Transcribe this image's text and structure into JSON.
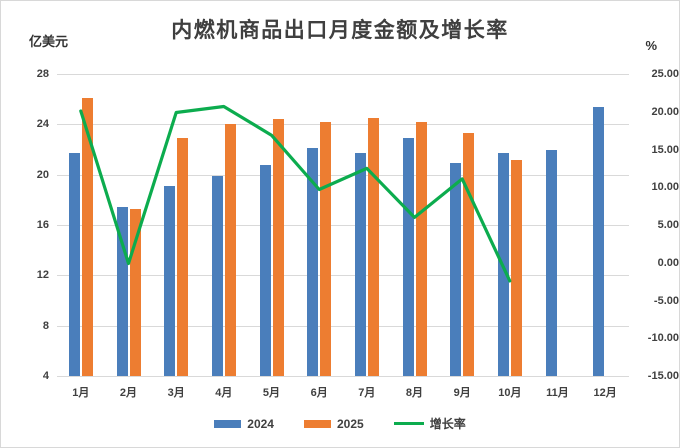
{
  "title": "内燃机商品出口月度金额及增长率",
  "left_axis": {
    "label": "亿美元",
    "ticks": [
      "28",
      "24",
      "20",
      "16",
      "12",
      "8",
      "4"
    ]
  },
  "right_axis": {
    "label": "%",
    "ticks": [
      "25.00",
      "20.00",
      "15.00",
      "10.00",
      "5.00",
      "0.00",
      "-5.00",
      "-10.00",
      "-15.00"
    ]
  },
  "legend": {
    "items": [
      {
        "label": "2024",
        "color": "#4a7ebb",
        "type": "bar"
      },
      {
        "label": "2025",
        "color": "#ed7d31",
        "type": "bar"
      },
      {
        "label": "增长率",
        "color": "#0cac4e",
        "type": "line"
      }
    ]
  },
  "colors": {
    "bar_2024": "#4a7ebb",
    "bar_2025": "#ed7d31",
    "growth_line": "#0cac4e",
    "gridline": "#d9d9d9",
    "title_text": "#3f3f3f"
  },
  "chart_data": {
    "type": "bar",
    "subtype": "grouped-bars-with-line",
    "title": "内燃机商品出口月度金额及增长率",
    "categories": [
      "1月",
      "2月",
      "3月",
      "4月",
      "5月",
      "6月",
      "7月",
      "8月",
      "9月",
      "10月",
      "11月",
      "12月"
    ],
    "series": [
      {
        "name": "2024",
        "type": "bar",
        "axis": "left",
        "color": "#4a7ebb",
        "values": [
          21.7,
          17.4,
          19.1,
          19.9,
          20.8,
          22.1,
          21.7,
          22.9,
          20.9,
          21.7,
          22.0,
          25.4
        ]
      },
      {
        "name": "2025",
        "type": "bar",
        "axis": "left",
        "color": "#ed7d31",
        "values": [
          26.1,
          17.3,
          22.9,
          24.0,
          24.4,
          24.2,
          24.5,
          24.2,
          23.3,
          21.2,
          null,
          null
        ]
      },
      {
        "name": "增长率",
        "type": "line",
        "axis": "right",
        "color": "#0cac4e",
        "values": [
          20.1,
          -0.1,
          19.9,
          20.7,
          16.9,
          9.7,
          12.5,
          6.0,
          11.1,
          -2.4,
          null,
          null
        ]
      }
    ],
    "left_ylabel": "亿美元",
    "right_ylabel": "%",
    "left_ylim": [
      4,
      28
    ],
    "right_ylim": [
      -15,
      25
    ],
    "grid": true,
    "legend_position": "bottom"
  }
}
